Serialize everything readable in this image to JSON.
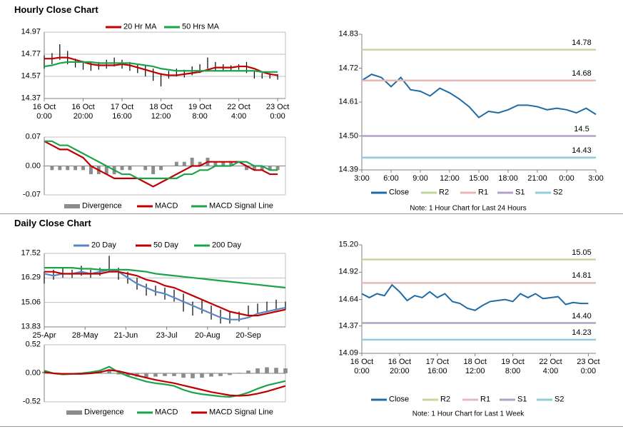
{
  "headers": [
    "Hourly Close Chart",
    "Daily Close Chart"
  ],
  "chart_data": [
    {
      "type": "price",
      "x": [
        0,
        4,
        8,
        12,
        16,
        20,
        24,
        28,
        32,
        36,
        40,
        44,
        48,
        52,
        56,
        60,
        64,
        68,
        72,
        76,
        80,
        84,
        88,
        92,
        96,
        100,
        104,
        108,
        112,
        116,
        120
      ],
      "high": [
        14.76,
        14.78,
        14.86,
        14.8,
        14.73,
        14.71,
        14.7,
        14.7,
        14.72,
        14.74,
        14.72,
        14.7,
        14.68,
        14.67,
        14.64,
        14.6,
        14.62,
        14.64,
        14.63,
        14.66,
        14.68,
        14.74,
        14.7,
        14.68,
        14.67,
        14.68,
        14.7,
        14.62,
        14.6,
        14.6,
        14.59
      ],
      "low": [
        14.64,
        14.68,
        14.72,
        14.68,
        14.65,
        14.63,
        14.62,
        14.63,
        14.64,
        14.66,
        14.64,
        14.62,
        14.6,
        14.57,
        14.53,
        14.48,
        14.55,
        14.57,
        14.56,
        14.58,
        14.6,
        14.64,
        14.62,
        14.62,
        14.62,
        14.63,
        14.6,
        14.55,
        14.55,
        14.55,
        14.54
      ],
      "bar_color": "#000000",
      "series": [
        {
          "name": "20 Hr MA",
          "color": "#c00000",
          "values": [
            14.73,
            14.73,
            14.74,
            14.74,
            14.72,
            14.7,
            14.68,
            14.67,
            14.67,
            14.67,
            14.68,
            14.67,
            14.65,
            14.63,
            14.61,
            14.59,
            14.58,
            14.58,
            14.59,
            14.6,
            14.61,
            14.63,
            14.65,
            14.65,
            14.65,
            14.66,
            14.66,
            14.64,
            14.61,
            14.59,
            14.58
          ]
        },
        {
          "name": "50 Hrs MA",
          "color": "#1aa34a",
          "values": [
            14.66,
            14.67,
            14.69,
            14.7,
            14.7,
            14.7,
            14.7,
            14.69,
            14.69,
            14.69,
            14.69,
            14.69,
            14.68,
            14.67,
            14.66,
            14.64,
            14.63,
            14.62,
            14.62,
            14.62,
            14.62,
            14.62,
            14.62,
            14.62,
            14.62,
            14.62,
            14.62,
            14.62,
            14.61,
            14.61,
            14.61
          ]
        }
      ],
      "xlim": [
        0,
        124
      ],
      "xticks": [
        {
          "value": 0,
          "label": "16 Oct\n0:00"
        },
        {
          "value": 20,
          "label": "16 Oct\n20:00"
        },
        {
          "value": 40,
          "label": "17 Oct\n16:00"
        },
        {
          "value": 60,
          "label": "18 Oct\n12:00"
        },
        {
          "value": 80,
          "label": "19 Oct\n8:00"
        },
        {
          "value": 100,
          "label": "22 Oct\n4:00"
        },
        {
          "value": 120,
          "label": "23 Oct\n0:00"
        }
      ],
      "ylim": [
        14.37,
        14.97
      ],
      "yticks": [
        14.37,
        14.57,
        14.77,
        14.97
      ],
      "grid": true
    },
    {
      "type": "macd",
      "x": [
        0,
        4,
        8,
        12,
        16,
        20,
        24,
        28,
        32,
        36,
        40,
        44,
        48,
        52,
        56,
        60,
        64,
        68,
        72,
        76,
        80,
        84,
        88,
        92,
        96,
        100,
        104,
        108,
        112,
        116,
        120
      ],
      "series": [
        {
          "name": "Divergence",
          "style": "bar",
          "color": "#8c8c8c",
          "values": [
            0.0,
            -0.01,
            -0.01,
            -0.01,
            -0.01,
            -0.01,
            -0.02,
            -0.02,
            -0.02,
            -0.02,
            -0.01,
            -0.01,
            0.0,
            -0.01,
            -0.02,
            -0.01,
            0.0,
            0.01,
            0.01,
            0.02,
            0.01,
            0.02,
            0.01,
            0.01,
            0.01,
            0.0,
            -0.01,
            -0.01,
            -0.01,
            -0.01,
            -0.01
          ]
        },
        {
          "name": "MACD",
          "style": "line",
          "color": "#c00000",
          "values": [
            0.06,
            0.05,
            0.04,
            0.04,
            0.03,
            0.02,
            0.0,
            -0.01,
            -0.02,
            -0.03,
            -0.03,
            -0.03,
            -0.03,
            -0.04,
            -0.05,
            -0.04,
            -0.03,
            -0.02,
            -0.01,
            0.0,
            0.0,
            0.01,
            0.01,
            0.01,
            0.01,
            0.01,
            0.0,
            -0.01,
            -0.01,
            -0.02,
            -0.02
          ]
        },
        {
          "name": "MACD Signal Line",
          "style": "line",
          "color": "#1aa34a",
          "values": [
            0.06,
            0.06,
            0.05,
            0.05,
            0.04,
            0.03,
            0.02,
            0.01,
            0.0,
            -0.01,
            -0.02,
            -0.02,
            -0.03,
            -0.03,
            -0.03,
            -0.03,
            -0.03,
            -0.03,
            -0.02,
            -0.02,
            -0.01,
            -0.01,
            0.0,
            0.0,
            0.0,
            0.01,
            0.01,
            0.0,
            0.0,
            -0.01,
            -0.01
          ]
        }
      ],
      "xlim": [
        0,
        124
      ],
      "ylim": [
        -0.07,
        0.07
      ],
      "yticks": [
        -0.07,
        {
          "value": 0,
          "label": "0.00"
        },
        0.07
      ],
      "grid": true
    },
    {
      "type": "pivot",
      "x": [
        0,
        1,
        2,
        3,
        4,
        5,
        6,
        7,
        8,
        9,
        10,
        11,
        12,
        13,
        14,
        15,
        16,
        17,
        18,
        19,
        20,
        21,
        22,
        23,
        24
      ],
      "series": [
        {
          "name": "Close",
          "color": "#1f6ba5",
          "values": [
            14.68,
            14.7,
            14.69,
            14.66,
            14.69,
            14.65,
            14.645,
            14.63,
            14.655,
            14.64,
            14.62,
            14.595,
            14.56,
            14.58,
            14.575,
            14.585,
            14.6,
            14.6,
            14.595,
            14.585,
            14.59,
            14.585,
            14.575,
            14.59,
            14.57
          ]
        }
      ],
      "levels": [
        {
          "name": "R2",
          "color": "#c4d79b",
          "value": 14.78
        },
        {
          "name": "R1",
          "color": "#e6b9b8",
          "value": 14.68
        },
        {
          "name": "S1",
          "color": "#b3a2c7",
          "value": 14.5
        },
        {
          "name": "S2",
          "color": "#93cddd",
          "value": 14.43
        }
      ],
      "xlim": [
        0,
        24
      ],
      "xticks": [
        {
          "value": 0,
          "label": "3:00"
        },
        {
          "value": 3,
          "label": "6:00"
        },
        {
          "value": 6,
          "label": "9:00"
        },
        {
          "value": 9,
          "label": "12:00"
        },
        {
          "value": 12,
          "label": "15:00"
        },
        {
          "value": 15,
          "label": "18:00"
        },
        {
          "value": 18,
          "label": "21:00"
        },
        {
          "value": 21,
          "label": "0:00"
        },
        {
          "value": 24,
          "label": "3:00"
        }
      ],
      "ylim": [
        14.39,
        14.83
      ],
      "yticks": [
        14.39,
        {
          "value": 14.5,
          "label": "14.50"
        },
        14.61,
        14.72,
        14.83
      ],
      "grid": false,
      "note": "Note: 1 Hour Chart for Last 24 Hours"
    },
    {
      "type": "price",
      "x": [
        0,
        5,
        10,
        15,
        20,
        25,
        30,
        35,
        40,
        45,
        50,
        55,
        60,
        65,
        70,
        75,
        80,
        85,
        90,
        95,
        100,
        105,
        110,
        115,
        120,
        125,
        130
      ],
      "high": [
        16.6,
        16.7,
        16.8,
        16.7,
        16.9,
        16.7,
        16.8,
        17.4,
        16.8,
        16.6,
        16.3,
        16.0,
        15.9,
        15.8,
        15.7,
        15.5,
        15.1,
        15.2,
        14.9,
        14.7,
        14.6,
        14.6,
        14.9,
        15.0,
        15.1,
        15.2,
        15.1
      ],
      "low": [
        16.0,
        16.2,
        16.3,
        16.3,
        16.4,
        16.3,
        16.4,
        16.6,
        16.2,
        16.0,
        15.7,
        15.4,
        15.4,
        15.2,
        15.1,
        14.6,
        14.4,
        14.5,
        14.2,
        14.0,
        14.0,
        14.1,
        14.4,
        14.5,
        14.6,
        14.7,
        14.7
      ],
      "bar_color": "#000000",
      "series": [
        {
          "name": "20 Day",
          "color": "#5a86c5",
          "values": [
            16.5,
            16.4,
            16.5,
            16.5,
            16.6,
            16.5,
            16.6,
            16.7,
            16.6,
            16.3,
            16.0,
            15.8,
            15.6,
            15.5,
            15.3,
            15.1,
            14.9,
            14.7,
            14.5,
            14.3,
            14.2,
            14.2,
            14.3,
            14.5,
            14.6,
            14.7,
            14.8
          ]
        },
        {
          "name": "50 Day",
          "color": "#c00000",
          "values": [
            16.6,
            16.6,
            16.5,
            16.5,
            16.5,
            16.5,
            16.5,
            16.6,
            16.6,
            16.5,
            16.4,
            16.2,
            16.1,
            15.9,
            15.8,
            15.6,
            15.4,
            15.2,
            15.0,
            14.8,
            14.6,
            14.5,
            14.4,
            14.4,
            14.5,
            14.6,
            14.7
          ]
        },
        {
          "name": "200 Day",
          "color": "#1aa34a",
          "values": [
            16.8,
            16.8,
            16.8,
            16.8,
            16.75,
            16.75,
            16.7,
            16.7,
            16.7,
            16.7,
            16.65,
            16.6,
            16.5,
            16.45,
            16.4,
            16.35,
            16.3,
            16.25,
            16.2,
            16.15,
            16.1,
            16.05,
            16.0,
            15.95,
            15.9,
            15.85,
            15.8
          ]
        }
      ],
      "xlim": [
        0,
        130
      ],
      "xticks": [
        {
          "value": 0,
          "label": "25-Apr"
        },
        {
          "value": 22,
          "label": "28-May"
        },
        {
          "value": 44,
          "label": "21-Jun"
        },
        {
          "value": 66,
          "label": "23-Jul"
        },
        {
          "value": 88,
          "label": "20-Aug"
        },
        {
          "value": 110,
          "label": "20-Sep"
        }
      ],
      "ylim": [
        13.83,
        17.52
      ],
      "yticks": [
        13.83,
        15.06,
        16.29,
        17.52
      ],
      "grid": true
    },
    {
      "type": "macd",
      "x": [
        0,
        5,
        10,
        15,
        20,
        25,
        30,
        35,
        40,
        45,
        50,
        55,
        60,
        65,
        70,
        75,
        80,
        85,
        90,
        95,
        100,
        105,
        110,
        115,
        120,
        125,
        130
      ],
      "series": [
        {
          "name": "Divergence",
          "style": "bar",
          "color": "#8c8c8c",
          "values": [
            0.03,
            0.0,
            -0.01,
            0.0,
            0.01,
            0.02,
            0.03,
            0.06,
            -0.02,
            -0.05,
            -0.06,
            -0.07,
            -0.06,
            -0.05,
            -0.05,
            -0.08,
            -0.09,
            -0.08,
            -0.06,
            -0.05,
            -0.03,
            0.01,
            0.05,
            0.09,
            0.11,
            0.1,
            0.09
          ]
        },
        {
          "name": "MACD",
          "style": "line",
          "color": "#1aa34a",
          "values": [
            0.05,
            0.0,
            -0.02,
            -0.01,
            0.0,
            0.02,
            0.05,
            0.12,
            0.02,
            -0.05,
            -0.1,
            -0.15,
            -0.18,
            -0.2,
            -0.23,
            -0.3,
            -0.35,
            -0.38,
            -0.4,
            -0.42,
            -0.43,
            -0.4,
            -0.35,
            -0.28,
            -0.22,
            -0.18,
            -0.14
          ]
        },
        {
          "name": "MACD Signal Line",
          "style": "line",
          "color": "#c00000",
          "values": [
            0.02,
            0.0,
            -0.01,
            -0.01,
            -0.01,
            0.0,
            0.02,
            0.06,
            0.04,
            0.0,
            -0.04,
            -0.08,
            -0.12,
            -0.15,
            -0.18,
            -0.22,
            -0.26,
            -0.3,
            -0.34,
            -0.37,
            -0.4,
            -0.41,
            -0.4,
            -0.37,
            -0.33,
            -0.28,
            -0.23
          ]
        }
      ],
      "xlim": [
        0,
        130
      ],
      "ylim": [
        -0.52,
        0.52
      ],
      "yticks": [
        -0.52,
        {
          "value": 0,
          "label": "0.00"
        },
        0.52
      ],
      "grid": true
    },
    {
      "type": "pivot",
      "x": [
        0,
        4,
        8,
        12,
        16,
        20,
        24,
        28,
        32,
        36,
        40,
        44,
        48,
        52,
        56,
        60,
        64,
        68,
        72,
        76,
        80,
        84,
        88,
        92,
        96,
        100,
        104,
        108,
        112,
        116,
        120
      ],
      "series": [
        {
          "name": "Close",
          "color": "#1f6ba5",
          "values": [
            14.7,
            14.66,
            14.7,
            14.68,
            14.79,
            14.72,
            14.63,
            14.68,
            14.66,
            14.72,
            14.66,
            14.7,
            14.62,
            14.6,
            14.55,
            14.53,
            14.58,
            14.62,
            14.63,
            14.64,
            14.62,
            14.7,
            14.66,
            14.7,
            14.65,
            14.66,
            14.67,
            14.59,
            14.61,
            14.6,
            14.6
          ]
        }
      ],
      "levels": [
        {
          "name": "R2",
          "color": "#c4d79b",
          "value": 15.05
        },
        {
          "name": "R1",
          "color": "#e6b9b8",
          "value": 14.81
        },
        {
          "name": "S1",
          "color": "#b3a2c7",
          "value": 14.4,
          "value_label": "14.40"
        },
        {
          "name": "S2",
          "color": "#93cddd",
          "value": 14.23
        }
      ],
      "xlim": [
        0,
        124
      ],
      "xticks": [
        {
          "value": 0,
          "label": "16 Oct\n0:00"
        },
        {
          "value": 20,
          "label": "16 Oct\n20:00"
        },
        {
          "value": 40,
          "label": "17 Oct\n16:00"
        },
        {
          "value": 60,
          "label": "18 Oct\n12:00"
        },
        {
          "value": 80,
          "label": "19 Oct\n8:00"
        },
        {
          "value": 100,
          "label": "22 Oct\n4:00"
        },
        {
          "value": 120,
          "label": "23 Oct\n0:00"
        }
      ],
      "ylim": [
        14.09,
        15.2
      ],
      "yticks": [
        14.09,
        14.37,
        14.64,
        14.92,
        {
          "value": 15.2,
          "label": "15.20"
        }
      ],
      "grid": false,
      "note": "Note: 1 Hour Chart for Last 1 Week"
    }
  ]
}
